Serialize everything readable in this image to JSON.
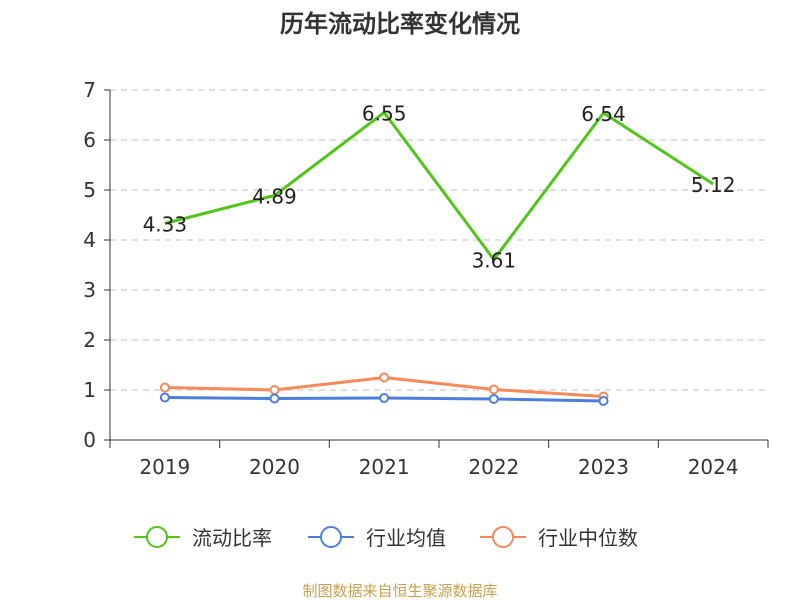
{
  "chart_data": {
    "type": "line",
    "title": "历年流动比率变化情况",
    "categories": [
      "2019",
      "2020",
      "2021",
      "2022",
      "2023",
      "2024"
    ],
    "ylim": [
      0,
      7
    ],
    "yticks": [
      "0",
      "1",
      "2",
      "3",
      "4",
      "5",
      "6",
      "7"
    ],
    "grid": true,
    "legend_position": "bottom",
    "series": [
      {
        "name": "流动比率",
        "color": "#52c41a",
        "values": [
          4.33,
          4.89,
          6.55,
          3.61,
          6.54,
          5.12
        ],
        "labels": [
          "4.33",
          "4.89",
          "6.55",
          "3.61",
          "6.54",
          "5.12"
        ],
        "markers": "hollow-circle-hidden"
      },
      {
        "name": "行业均值",
        "color": "#4c7fdc",
        "values": [
          0.85,
          0.83,
          0.84,
          0.82,
          0.78,
          null
        ],
        "markers": "hollow-circle"
      },
      {
        "name": "行业中位数",
        "color": "#f5895a",
        "values": [
          1.05,
          1.0,
          1.25,
          1.01,
          0.87,
          null
        ],
        "markers": "hollow-circle"
      }
    ]
  },
  "footer": {
    "source": "制图数据来自恒生聚源数据库",
    "source_color": "#c8a050"
  }
}
